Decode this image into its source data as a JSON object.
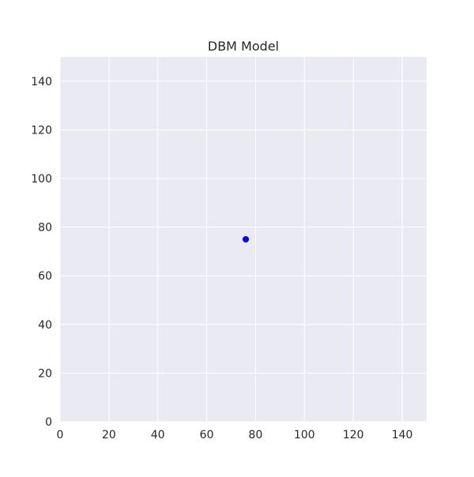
{
  "chart_data": {
    "type": "scatter",
    "title": "DBM Model",
    "xlabel": "",
    "ylabel": "",
    "xlim": [
      0,
      150
    ],
    "ylim": [
      0,
      150
    ],
    "xticks": [
      0,
      20,
      40,
      60,
      80,
      100,
      120,
      140
    ],
    "yticks": [
      0,
      20,
      40,
      60,
      80,
      100,
      120,
      140
    ],
    "grid": true,
    "background_color": "#eaeaf2",
    "grid_color": "#ffffff",
    "series": [
      {
        "color": "#0000ff",
        "points": [
          {
            "x": 76,
            "y": 75
          }
        ]
      }
    ]
  }
}
